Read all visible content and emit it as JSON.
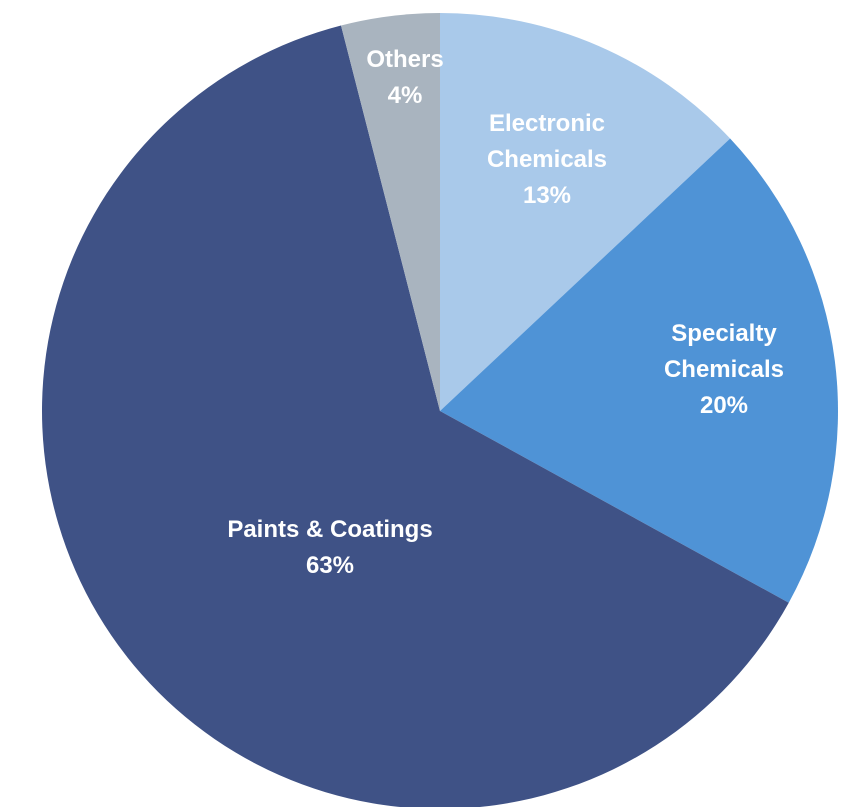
{
  "chart_data": {
    "type": "pie",
    "categories": [
      "Electronic Chemicals",
      "Specialty Chemicals",
      "Paints & Coatings",
      "Others"
    ],
    "values": [
      13,
      20,
      63,
      4
    ],
    "value_labels": [
      "13%",
      "20%",
      "63%",
      "4%"
    ],
    "colors": [
      "#a9c9ea",
      "#4f93d6",
      "#3f5286",
      "#a9b4bf"
    ]
  }
}
